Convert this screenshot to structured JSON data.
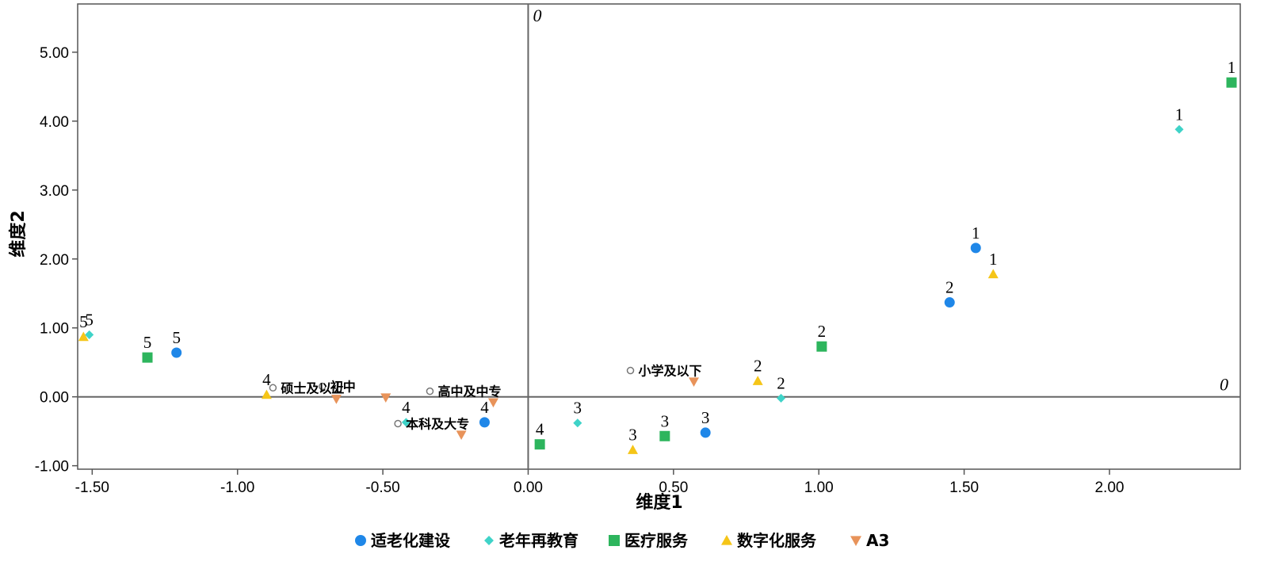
{
  "chart_data": {
    "type": "scatter",
    "title": "",
    "xlabel": "维度1",
    "ylabel": "维度2",
    "xlim": [
      -1.55,
      2.45
    ],
    "ylim": [
      -1.05,
      5.7
    ],
    "x_ticks": [
      -1.5,
      -1.0,
      -0.5,
      0.0,
      0.5,
      1.0,
      1.5,
      2.0
    ],
    "x_tick_labels": [
      "-1.50",
      "-1.00",
      "-0.50",
      "0.00",
      "0.50",
      "1.00",
      "1.50",
      "2.00"
    ],
    "y_ticks": [
      -1.0,
      0.0,
      1.0,
      2.0,
      3.0,
      4.0,
      5.0
    ],
    "y_tick_labels": [
      "-1.00",
      "0.00",
      "1.00",
      "2.00",
      "3.00",
      "4.00",
      "5.00"
    ],
    "reference_lines": {
      "x": 0,
      "y": 0,
      "x_label": "0",
      "y_label": "0"
    },
    "legend_position": "bottom",
    "series": [
      {
        "name": "适老化建设",
        "marker": "circle",
        "color": "#1f87e8",
        "points": [
          {
            "x": 1.54,
            "y": 2.16,
            "label": "1"
          },
          {
            "x": 1.45,
            "y": 1.37,
            "label": "2"
          },
          {
            "x": 0.61,
            "y": -0.52,
            "label": "3"
          },
          {
            "x": -0.15,
            "y": -0.37,
            "label": "4"
          },
          {
            "x": -1.21,
            "y": 0.64,
            "label": "5"
          }
        ]
      },
      {
        "name": "老年再教育",
        "marker": "diamond",
        "color": "#3fd3c8",
        "points": [
          {
            "x": 2.24,
            "y": 3.88,
            "label": "1"
          },
          {
            "x": 0.87,
            "y": -0.02,
            "label": "2"
          },
          {
            "x": 0.17,
            "y": -0.38,
            "label": "3"
          },
          {
            "x": -0.42,
            "y": -0.37,
            "label": "4"
          },
          {
            "x": -1.51,
            "y": 0.9,
            "label": "5"
          }
        ]
      },
      {
        "name": "医疗服务",
        "marker": "square",
        "color": "#2db55d",
        "points": [
          {
            "x": 2.42,
            "y": 4.56,
            "label": "1"
          },
          {
            "x": 1.01,
            "y": 0.73,
            "label": "2"
          },
          {
            "x": 0.47,
            "y": -0.57,
            "label": "3"
          },
          {
            "x": 0.04,
            "y": -0.69,
            "label": "4"
          },
          {
            "x": -1.31,
            "y": 0.57,
            "label": "5"
          }
        ]
      },
      {
        "name": "数字化服务",
        "marker": "triangle",
        "color": "#f5c518",
        "points": [
          {
            "x": 1.6,
            "y": 1.78,
            "label": "1"
          },
          {
            "x": 0.79,
            "y": 0.23,
            "label": "2"
          },
          {
            "x": 0.36,
            "y": -0.77,
            "label": "3"
          },
          {
            "x": -0.9,
            "y": 0.03,
            "label": "4"
          },
          {
            "x": -1.53,
            "y": 0.87,
            "label": "5"
          }
        ]
      },
      {
        "name": "A3",
        "marker": "triangle-down",
        "color": "#e8935a",
        "points": [
          {
            "x": 0.57,
            "y": 0.22,
            "label": "小学及以下"
          },
          {
            "x": -0.12,
            "y": -0.08,
            "label": "高中及中专"
          },
          {
            "x": -0.23,
            "y": -0.55,
            "label": "本科及大专"
          },
          {
            "x": -0.49,
            "y": -0.01,
            "label": "初中"
          },
          {
            "x": -0.66,
            "y": -0.03,
            "label": "硕士及以上"
          }
        ]
      }
    ]
  }
}
